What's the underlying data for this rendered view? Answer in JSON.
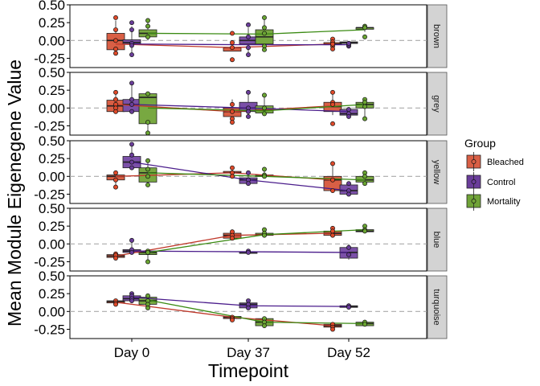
{
  "chart_data": {
    "type": "box",
    "title": "",
    "xlabel": "Timepoint",
    "ylabel": "Mean Module Eigenegene Value",
    "categories": [
      "Day 0",
      "Day 37",
      "Day 52"
    ],
    "ylim": [
      -0.38,
      0.5
    ],
    "yticks": [
      0.5,
      0.25,
      0.0,
      -0.25
    ],
    "ytick_labels": [
      "0.50",
      "0.25",
      "0.00",
      "-0.25"
    ],
    "reference_line": 0,
    "legend": {
      "title": "Group",
      "position": "right",
      "entries": [
        {
          "name": "Bleached",
          "color": "#d95f45"
        },
        {
          "name": "Control",
          "color": "#6a3d9a"
        },
        {
          "name": "Mortality",
          "color": "#70a338"
        }
      ]
    },
    "groups": [
      {
        "name": "Bleached",
        "fill": "#d95f45",
        "line": "#c0392b",
        "dot": "#e04a2a"
      },
      {
        "name": "Control",
        "fill": "#7b50a8",
        "line": "#4b1d8c",
        "dot": "#6a3d9a"
      },
      {
        "name": "Mortality",
        "fill": "#78a841",
        "line": "#3a8a12",
        "dot": "#6aa532"
      }
    ],
    "facets": [
      {
        "label": "brown",
        "boxes": [
          [
            [
              -0.15,
              -0.13,
              0.0,
              0.1,
              0.28
            ],
            [
              -0.14,
              -0.15,
              -0.1,
              -0.1,
              -0.05
            ],
            [
              -0.12,
              -0.06,
              -0.05,
              -0.03,
              0.02
            ]
          ],
          [
            [
              -0.2,
              -0.05,
              -0.03,
              0.01,
              0.2
            ],
            [
              -0.22,
              -0.05,
              0.0,
              0.05,
              0.18
            ],
            [
              -0.04,
              -0.04,
              -0.03,
              -0.02,
              -0.01
            ]
          ],
          [
            [
              0.0,
              0.05,
              0.1,
              0.15,
              0.25
            ],
            [
              -0.05,
              -0.05,
              0.05,
              0.15,
              0.32
            ],
            [
              0.12,
              0.17,
              0.18,
              0.18,
              0.22
            ]
          ]
        ],
        "means": [
          [
            -0.05,
            -0.1,
            -0.05
          ],
          [
            -0.05,
            -0.06,
            -0.06
          ],
          [
            0.1,
            0.09,
            0.15
          ]
        ],
        "points": [
          [
            [
              0.32,
              0.15,
              0.0,
              -0.12,
              -0.18
            ],
            [
              0.1,
              -0.1,
              -0.27,
              -0.03
            ],
            [
              0.02,
              -0.02,
              -0.08,
              -0.12,
              -0.05
            ]
          ],
          [
            [
              0.25,
              0.15,
              -0.04,
              -0.07,
              -0.2
            ],
            [
              0.22,
              0.05,
              -0.1,
              -0.2
            ],
            [
              -0.08,
              -0.06,
              -0.04
            ]
          ],
          [
            [
              0.28,
              0.2,
              0.05
            ],
            [
              0.32,
              0.18,
              0.1,
              -0.08,
              -0.13
            ],
            [
              0.2,
              0.18,
              0.05
            ]
          ]
        ]
      },
      {
        "label": "grey",
        "boxes": [
          [
            [
              -0.05,
              -0.05,
              0.03,
              0.11,
              0.2
            ],
            [
              -0.18,
              -0.12,
              -0.05,
              0.0,
              0.12
            ],
            [
              -0.1,
              -0.05,
              0.02,
              0.08,
              0.2
            ]
          ],
          [
            [
              -0.05,
              -0.05,
              0.05,
              0.12,
              0.35
            ],
            [
              -0.12,
              -0.05,
              0.0,
              0.08,
              0.22
            ],
            [
              -0.15,
              -0.1,
              -0.08,
              -0.02,
              -0.02
            ]
          ],
          [
            [
              -0.35,
              -0.22,
              0.15,
              0.2,
              0.22
            ],
            [
              -0.1,
              -0.07,
              -0.03,
              0.03,
              0.18
            ],
            [
              -0.12,
              0.0,
              0.05,
              0.08,
              0.12
            ]
          ]
        ],
        "means": [
          [
            0.05,
            -0.05,
            0.03
          ],
          [
            0.05,
            0.0,
            -0.05
          ],
          [
            0.0,
            -0.04,
            0.05
          ]
        ],
        "points": [
          [
            [
              0.22,
              0.12,
              0.05,
              0.0,
              -0.05
            ],
            [
              0.05,
              -0.05,
              -0.15,
              -0.2
            ],
            [
              0.22,
              0.08,
              0.05,
              -0.22
            ]
          ],
          [
            [
              0.35,
              0.12,
              0.05,
              -0.05
            ],
            [
              0.22,
              0.0,
              -0.05,
              -0.12
            ],
            [
              -0.02,
              -0.08,
              -0.12
            ]
          ],
          [
            [
              0.2,
              -0.2,
              -0.35
            ],
            [
              0.18,
              0.0,
              -0.08
            ],
            [
              0.12,
              0.08,
              0.02,
              -0.15
            ]
          ]
        ]
      },
      {
        "label": "yellow",
        "boxes": [
          [
            [
              -0.15,
              -0.05,
              0.0,
              0.02,
              0.05
            ],
            [
              0.03,
              0.05,
              0.05,
              0.07,
              0.15
            ],
            [
              -0.2,
              -0.2,
              -0.05,
              0.0,
              0.15
            ]
          ],
          [
            [
              0.1,
              0.12,
              0.2,
              0.28,
              0.47
            ],
            [
              -0.12,
              -0.1,
              -0.05,
              -0.02,
              0.02
            ],
            [
              -0.28,
              -0.25,
              -0.2,
              -0.12,
              -0.1
            ]
          ],
          [
            [
              -0.12,
              -0.08,
              0.05,
              0.12,
              0.22
            ],
            [
              0.0,
              0.0,
              0.01,
              0.02,
              0.1
            ],
            [
              -0.1,
              -0.08,
              -0.05,
              0.0,
              0.05
            ]
          ]
        ],
        "means": [
          [
            0.0,
            0.05,
            -0.05
          ],
          [
            0.2,
            -0.05,
            -0.2
          ],
          [
            0.05,
            0.0,
            -0.05
          ]
        ],
        "points": [
          [
            [
              0.05,
              -0.05,
              -0.15
            ],
            [
              0.12,
              0.05,
              0.0
            ],
            [
              0.18,
              -0.05,
              -0.2
            ]
          ],
          [
            [
              0.45,
              0.3,
              0.2,
              0.12
            ],
            [
              0.05,
              -0.05,
              -0.1
            ],
            [
              -0.1,
              -0.2,
              -0.25
            ]
          ],
          [
            [
              0.22,
              0.1,
              0.0,
              -0.12
            ],
            [
              0.1,
              0.02,
              0.0
            ],
            [
              0.05,
              0.0,
              -0.1
            ]
          ]
        ]
      },
      {
        "label": "blue",
        "boxes": [
          [
            [
              -0.2,
              -0.19,
              -0.17,
              -0.15,
              -0.13
            ],
            [
              0.05,
              0.08,
              0.12,
              0.15,
              0.17
            ],
            [
              0.1,
              0.12,
              0.15,
              0.18,
              0.22
            ]
          ],
          [
            [
              -0.15,
              -0.12,
              -0.1,
              -0.08,
              0.05
            ],
            [
              -0.14,
              -0.13,
              -0.12,
              -0.11,
              -0.1
            ],
            [
              -0.22,
              -0.2,
              -0.12,
              -0.05,
              0.0
            ]
          ],
          [
            [
              -0.25,
              -0.15,
              -0.12,
              -0.1,
              -0.1
            ],
            [
              0.1,
              0.12,
              0.13,
              0.15,
              0.2
            ],
            [
              0.15,
              0.17,
              0.18,
              0.2,
              0.25
            ]
          ]
        ],
        "means": [
          [
            -0.17,
            0.12,
            0.15
          ],
          [
            -0.1,
            -0.11,
            -0.12
          ],
          [
            -0.12,
            0.13,
            0.2
          ]
        ],
        "points": [
          [
            [
              -0.14,
              -0.16,
              -0.2
            ],
            [
              0.17,
              0.12,
              0.08
            ],
            [
              0.22,
              0.18,
              0.12
            ]
          ],
          [
            [
              0.05,
              -0.08,
              -0.12
            ],
            [
              -0.1,
              -0.12
            ],
            [
              -0.05,
              -0.15
            ]
          ],
          [
            [
              -0.1,
              -0.12,
              -0.25
            ],
            [
              0.2,
              0.15,
              0.12
            ],
            [
              0.25,
              0.2,
              0.18
            ]
          ]
        ]
      },
      {
        "label": "turquoise",
        "boxes": [
          [
            [
              0.12,
              0.12,
              0.14,
              0.15,
              0.17
            ],
            [
              -0.12,
              -0.1,
              -0.08,
              -0.07,
              -0.05
            ],
            [
              -0.25,
              -0.22,
              -0.2,
              -0.18,
              -0.15
            ]
          ],
          [
            [
              0.15,
              0.15,
              0.18,
              0.22,
              0.25
            ],
            [
              0.05,
              0.05,
              0.1,
              0.12,
              0.15
            ],
            [
              0.06,
              0.06,
              0.07,
              0.08,
              0.08
            ]
          ],
          [
            [
              0.05,
              0.1,
              0.15,
              0.2,
              0.22
            ],
            [
              -0.22,
              -0.2,
              -0.15,
              -0.1,
              -0.08
            ],
            [
              -0.2,
              -0.2,
              -0.17,
              -0.15,
              -0.15
            ]
          ]
        ],
        "means": [
          [
            0.13,
            -0.08,
            -0.2
          ],
          [
            0.2,
            0.08,
            0.07
          ],
          [
            0.16,
            -0.15,
            -0.17
          ]
        ],
        "points": [
          [
            [
              0.15,
              0.12,
              0.1
            ],
            [
              -0.08,
              -0.1,
              -0.12
            ],
            [
              -0.18,
              -0.22,
              -0.25
            ]
          ],
          [
            [
              0.25,
              0.22,
              0.18,
              0.15
            ],
            [
              0.15,
              0.1,
              0.05
            ],
            [
              0.08,
              0.06
            ]
          ],
          [
            [
              0.22,
              0.15,
              0.1,
              0.05
            ],
            [
              -0.1,
              -0.15,
              -0.2
            ],
            [
              -0.15,
              -0.18
            ]
          ]
        ]
      }
    ]
  }
}
